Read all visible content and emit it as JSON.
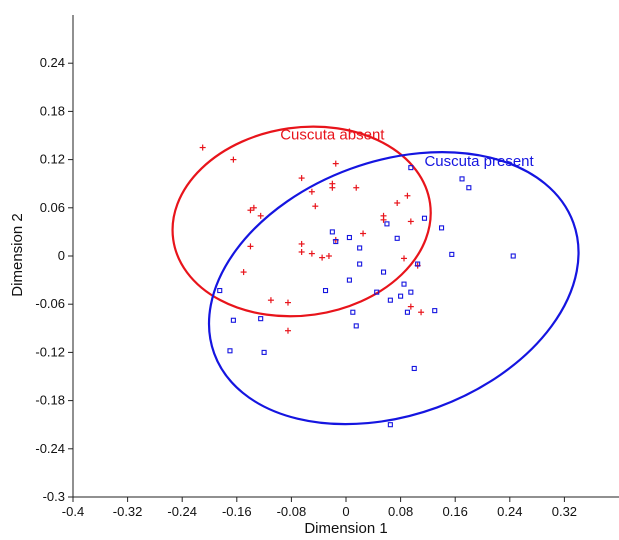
{
  "chart_data": {
    "type": "scatter",
    "title": "",
    "xlabel": "Dimension 1",
    "ylabel": "Dimension 2",
    "xlim": [
      -0.4,
      0.4
    ],
    "ylim": [
      -0.3,
      0.3
    ],
    "x_ticks": [
      "-0.4",
      "-0.32",
      "-0.24",
      "-0.16",
      "-0.08",
      "0",
      "0.08",
      "0.16",
      "0.24",
      "0.32"
    ],
    "y_ticks": [
      "-0.3",
      "-0.24",
      "-0.18",
      "-0.12",
      "-0.06",
      "0",
      "0.06",
      "0.12",
      "0.18",
      "0.24"
    ],
    "grid": false,
    "series": [
      {
        "name": "Cuscuta absent",
        "color": "#e8141b",
        "marker": "plus",
        "ellipse": {
          "cx": -0.065,
          "cy": 0.043,
          "rx": 0.19,
          "ry": 0.117,
          "angle_deg": 8
        },
        "points": [
          [
            -0.21,
            0.135
          ],
          [
            -0.165,
            0.12
          ],
          [
            -0.14,
            0.057
          ],
          [
            -0.135,
            0.06
          ],
          [
            -0.125,
            0.05
          ],
          [
            -0.14,
            0.012
          ],
          [
            -0.15,
            -0.02
          ],
          [
            -0.11,
            -0.055
          ],
          [
            -0.085,
            -0.058
          ],
          [
            -0.085,
            -0.093
          ],
          [
            -0.065,
            0.097
          ],
          [
            -0.05,
            0.08
          ],
          [
            -0.045,
            0.062
          ],
          [
            -0.065,
            0.015
          ],
          [
            -0.065,
            0.005
          ],
          [
            -0.05,
            0.003
          ],
          [
            -0.035,
            -0.002
          ],
          [
            -0.025,
            0.0
          ],
          [
            -0.02,
            0.09
          ],
          [
            -0.02,
            0.085
          ],
          [
            -0.015,
            0.02
          ],
          [
            -0.015,
            0.115
          ],
          [
            0.015,
            0.085
          ],
          [
            0.025,
            0.028
          ],
          [
            0.055,
            0.045
          ],
          [
            0.075,
            0.066
          ],
          [
            0.09,
            0.075
          ],
          [
            0.055,
            0.05
          ],
          [
            0.085,
            -0.003
          ],
          [
            0.095,
            0.043
          ],
          [
            0.095,
            -0.063
          ],
          [
            0.11,
            -0.07
          ],
          [
            0.105,
            -0.012
          ]
        ]
      },
      {
        "name": "Cuscuta present",
        "color": "#1515e0",
        "marker": "square",
        "ellipse": {
          "cx": 0.07,
          "cy": -0.04,
          "rx": 0.28,
          "ry": 0.158,
          "angle_deg": 20
        },
        "points": [
          [
            -0.185,
            -0.043
          ],
          [
            -0.17,
            -0.118
          ],
          [
            -0.165,
            -0.08
          ],
          [
            -0.125,
            -0.078
          ],
          [
            -0.12,
            -0.12
          ],
          [
            -0.03,
            -0.043
          ],
          [
            -0.02,
            0.03
          ],
          [
            -0.015,
            0.018
          ],
          [
            0.005,
            -0.03
          ],
          [
            0.005,
            0.023
          ],
          [
            0.01,
            -0.07
          ],
          [
            0.015,
            -0.087
          ],
          [
            0.02,
            0.01
          ],
          [
            0.02,
            -0.01
          ],
          [
            0.045,
            -0.045
          ],
          [
            0.055,
            -0.02
          ],
          [
            0.06,
            0.04
          ],
          [
            0.065,
            -0.055
          ],
          [
            0.075,
            0.022
          ],
          [
            0.08,
            -0.05
          ],
          [
            0.085,
            -0.035
          ],
          [
            0.09,
            -0.07
          ],
          [
            0.095,
            0.11
          ],
          [
            0.095,
            -0.045
          ],
          [
            0.105,
            -0.01
          ],
          [
            0.115,
            0.047
          ],
          [
            0.14,
            0.035
          ],
          [
            0.13,
            -0.068
          ],
          [
            0.155,
            0.002
          ],
          [
            0.17,
            0.096
          ],
          [
            0.18,
            0.085
          ],
          [
            0.245,
            0.0
          ],
          [
            0.1,
            -0.14
          ],
          [
            0.065,
            -0.21
          ]
        ]
      }
    ],
    "annotations": [
      {
        "text": "Cuscuta absent",
        "series": 0,
        "at": [
          -0.02,
          0.145
        ]
      },
      {
        "text": "Cuscuta present",
        "series": 1,
        "at": [
          0.195,
          0.112
        ]
      }
    ]
  }
}
